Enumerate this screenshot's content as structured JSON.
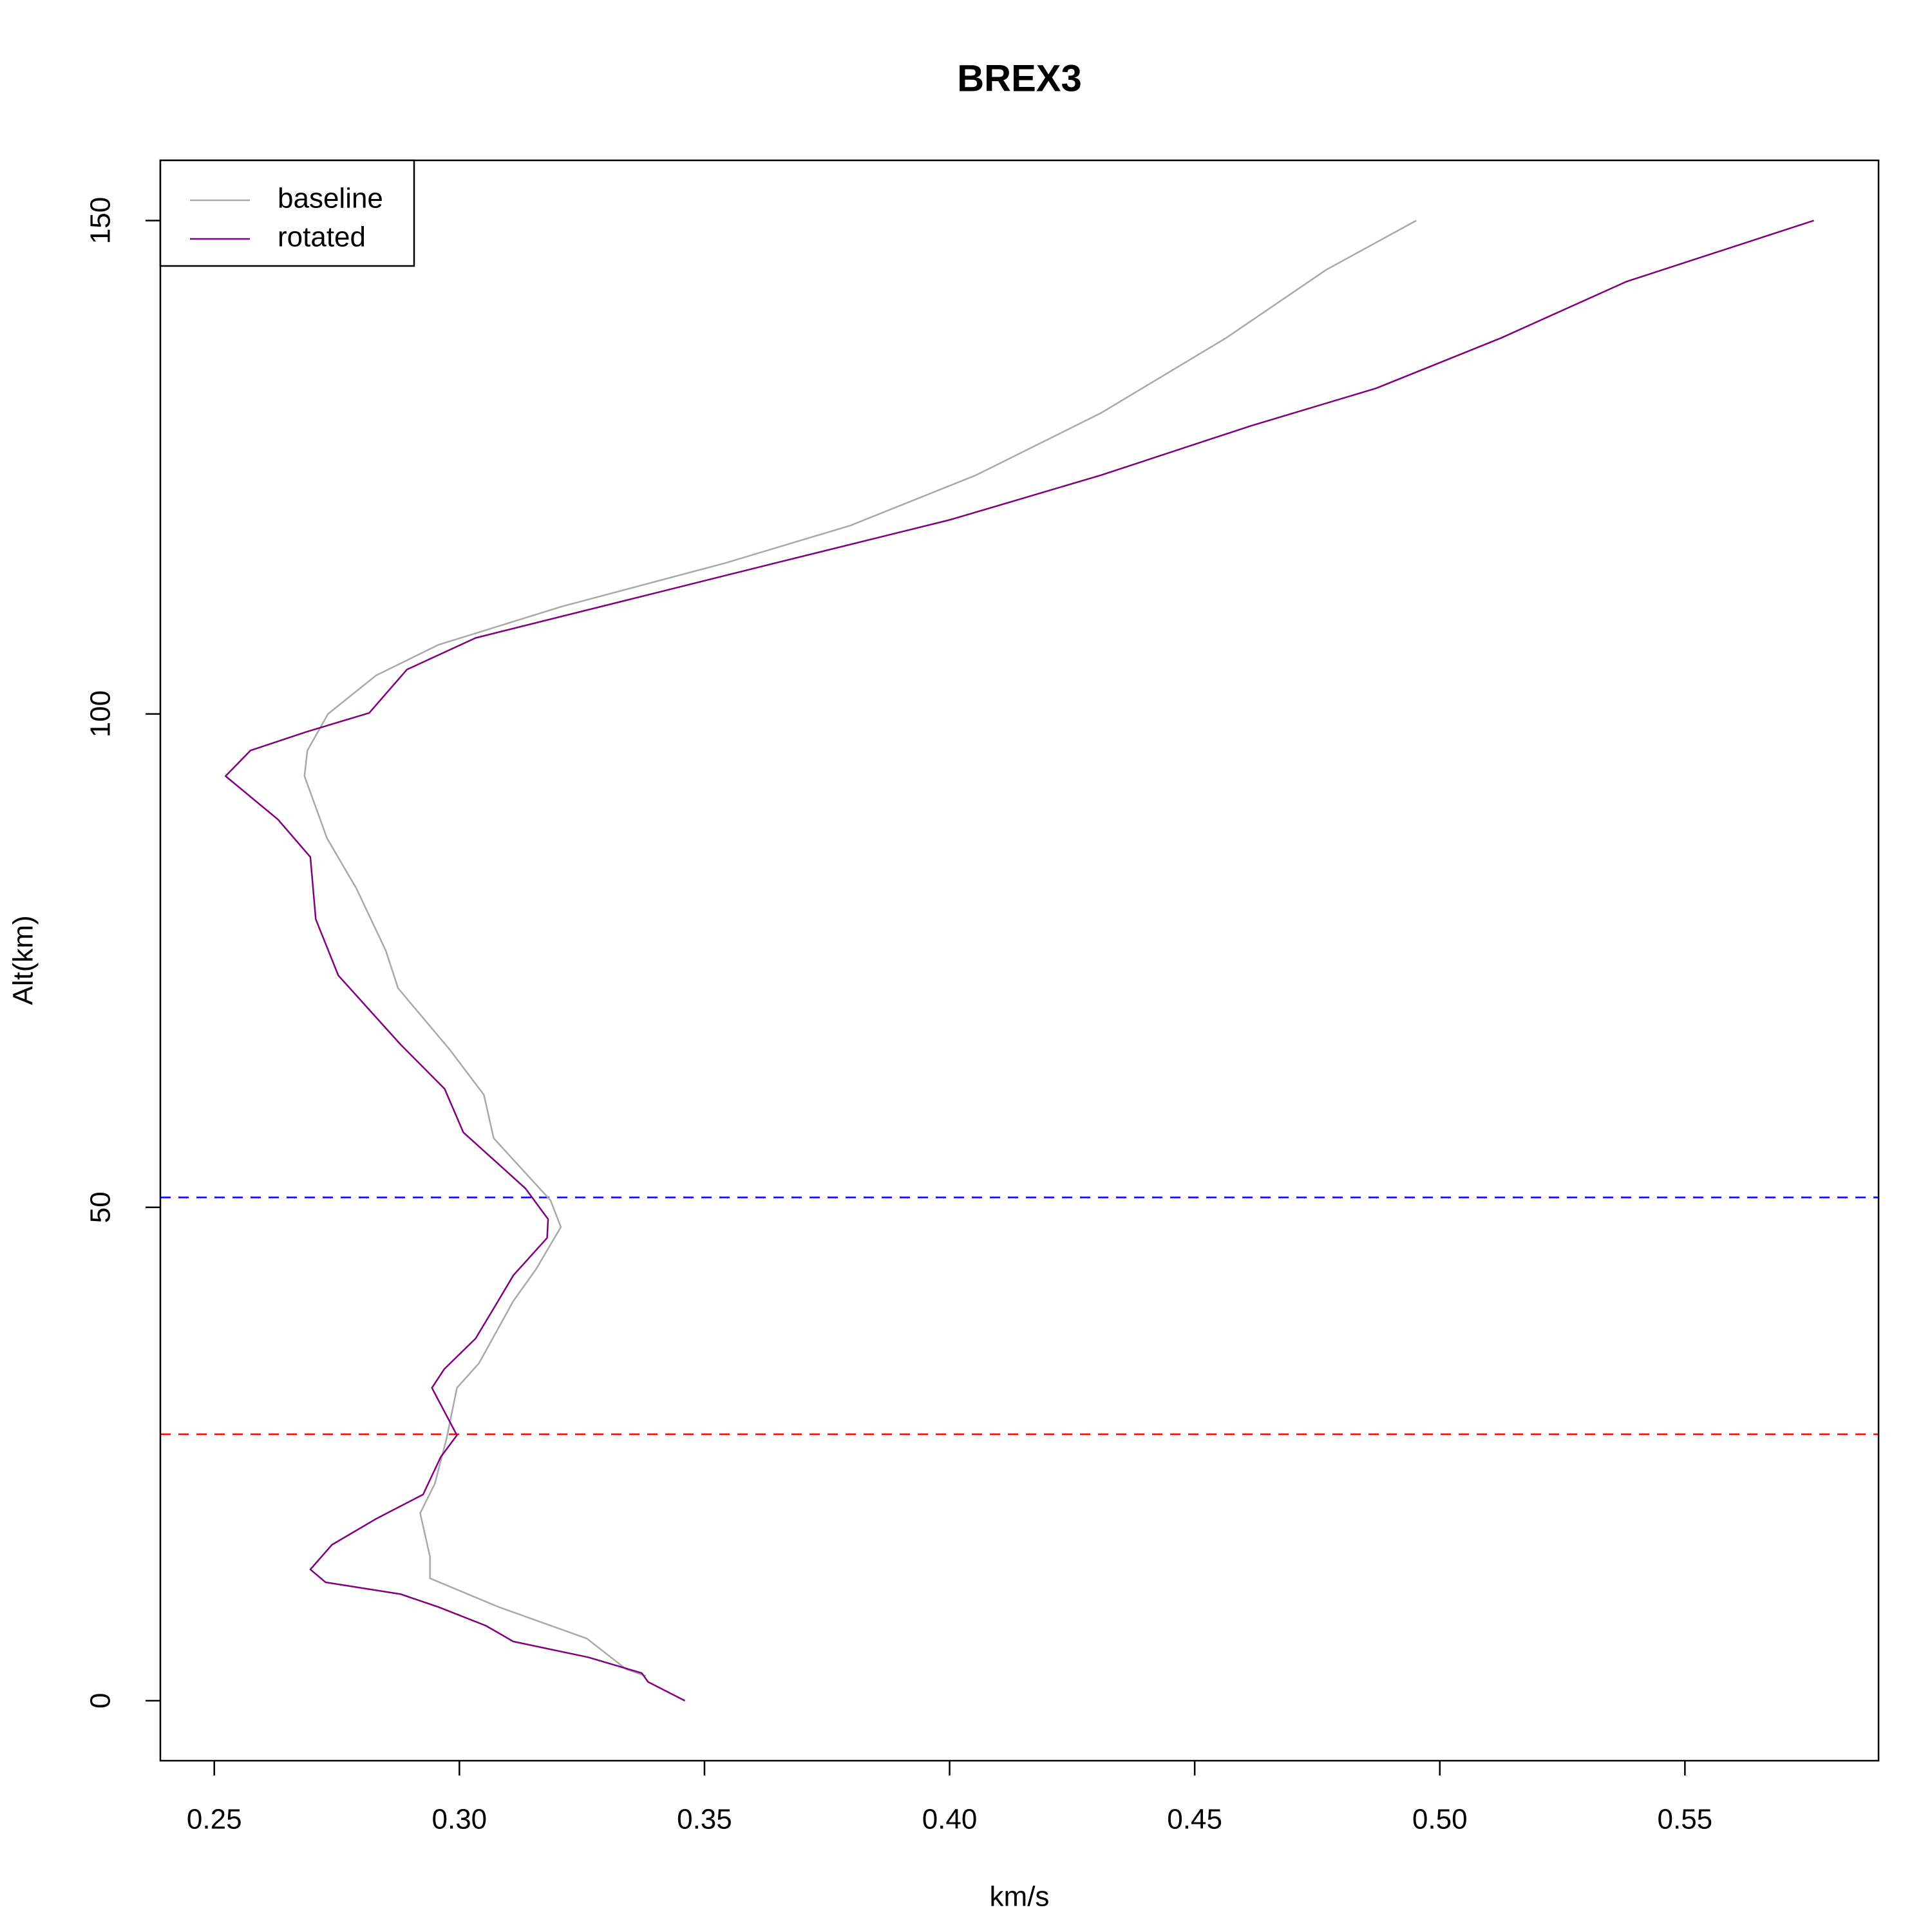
{
  "chart_data": {
    "type": "line",
    "title": "BREX3",
    "xlabel": "km/s",
    "ylabel": "Alt(km)",
    "xlim": [
      0.239,
      0.5895
    ],
    "ylim": [
      -6.08,
      156.1
    ],
    "xticks": [
      0.25,
      {
        "value": 0.3,
        "label": "0.30"
      },
      0.35,
      {
        "value": 0.4,
        "label": "0.40"
      },
      0.45,
      {
        "value": 0.5,
        "label": "0.50"
      },
      0.55
    ],
    "yticks": [
      0,
      50,
      100,
      150
    ],
    "legend": "topleft",
    "series": [
      {
        "name": "baseline",
        "color": "#a9a9a9",
        "x": [
          0.338,
          0.334,
          0.326,
          0.308,
          0.294,
          0.294,
          0.292,
          0.295,
          0.2974,
          0.2995,
          0.304,
          0.311,
          0.3156,
          0.3207,
          0.3186,
          0.307,
          0.305,
          0.298,
          0.2875,
          0.285,
          0.279,
          0.273,
          0.2684,
          0.269,
          0.2732,
          0.283,
          0.2957,
          0.321,
          0.3543,
          0.3798,
          0.4054,
          0.4309,
          0.4564,
          0.4768,
          0.4952
        ],
        "values": [
          2.5,
          3.2,
          6.3,
          9.5,
          12.4,
          14.6,
          19,
          22,
          26.6,
          31.7,
          34.2,
          40.5,
          43.7,
          48,
          50.7,
          57,
          61.4,
          66,
          72.2,
          76,
          82.3,
          87.4,
          93.7,
          96.3,
          100,
          103.9,
          107,
          110.9,
          115.3,
          119.1,
          124.2,
          130.5,
          138.1,
          145,
          150
        ]
      },
      {
        "name": "rotated",
        "color": "#800080",
        "x": [
          0.346,
          0.3385,
          0.3372,
          0.3263,
          0.311,
          0.3054,
          0.2957,
          0.288,
          0.2727,
          0.2696,
          0.274,
          0.2829,
          0.2926,
          0.2944,
          0.2962,
          0.2995,
          0.2944,
          0.2969,
          0.3033,
          0.3079,
          0.311,
          0.3179,
          0.3181,
          0.3135,
          0.3008,
          0.297,
          0.288,
          0.2753,
          0.2707,
          0.2696,
          0.263,
          0.2523,
          0.2574,
          0.2689,
          0.2816,
          0.2893,
          0.3033,
          0.3339,
          0.3645,
          0.4003,
          0.4309,
          0.4615,
          0.487,
          0.5125,
          0.538,
          0.5763
        ],
        "values": [
          0,
          1.9,
          2.8,
          4.4,
          6,
          7.6,
          9.5,
          10.8,
          12,
          13.3,
          15.8,
          18.4,
          20.9,
          22.8,
          24.7,
          26.9,
          31.7,
          33.6,
          36.7,
          40.5,
          43.1,
          46.9,
          48.8,
          51.9,
          57.6,
          62,
          66.5,
          73.5,
          79.2,
          85.5,
          89.3,
          93.7,
          96.3,
          98.2,
          100.1,
          104.5,
          107.7,
          111.5,
          115.3,
          119.7,
          124.2,
          129.2,
          133,
          138.1,
          143.8,
          150
        ]
      }
    ],
    "reference_lines": [
      {
        "value": 51,
        "color": "#0000ff"
      },
      {
        "value": 27,
        "color": "#ff0000"
      }
    ],
    "reference_line_style": "dashed"
  }
}
